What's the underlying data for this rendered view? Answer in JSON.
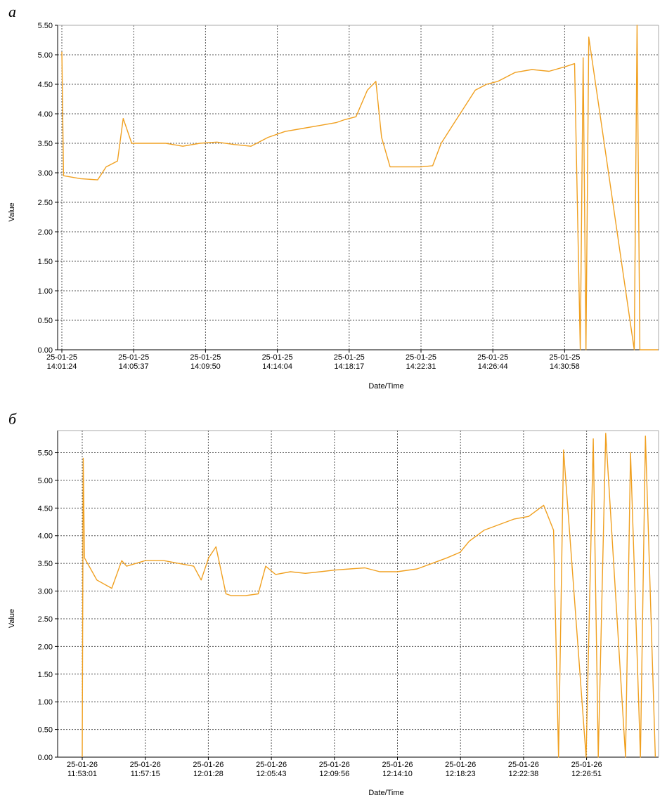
{
  "panels": [
    {
      "letter": "а",
      "chart_data": {
        "type": "line",
        "xlabel": "Date/Time",
        "ylabel": "Value",
        "ylim": [
          0,
          5.5
        ],
        "yticks": [
          "0.00",
          "0.50",
          "1.00",
          "1.50",
          "2.00",
          "2.50",
          "3.00",
          "3.50",
          "4.00",
          "4.50",
          "5.00",
          "5.50"
        ],
        "xticks": [
          {
            "date": "25-01-25",
            "time": "14:01:24"
          },
          {
            "date": "25-01-25",
            "time": "14:05:37"
          },
          {
            "date": "25-01-25",
            "time": "14:09:50"
          },
          {
            "date": "25-01-25",
            "time": "14:14:04"
          },
          {
            "date": "25-01-25",
            "time": "14:18:17"
          },
          {
            "date": "25-01-25",
            "time": "14:22:31"
          },
          {
            "date": "25-01-25",
            "time": "14:26:44"
          },
          {
            "date": "25-01-25",
            "time": "14:30:58"
          }
        ],
        "grid": true,
        "line_color": "#f0a020",
        "series": [
          {
            "x": [
              "14:01:24",
              "14:01:30",
              "14:02:30",
              "14:03:30",
              "14:04:00",
              "14:04:40",
              "14:05:00",
              "14:05:30",
              "14:06:30",
              "14:07:30",
              "14:08:30",
              "14:09:30",
              "14:10:30",
              "14:11:30",
              "14:12:30",
              "14:13:30",
              "14:14:30",
              "14:15:30",
              "14:16:30",
              "14:17:30",
              "14:18:00",
              "14:18:40",
              "14:19:20",
              "14:19:50",
              "14:20:10",
              "14:20:40",
              "14:21:30",
              "14:22:30",
              "14:23:10",
              "14:23:40",
              "14:24:20",
              "14:25:00",
              "14:25:40",
              "14:26:20",
              "14:27:00",
              "14:28:00",
              "14:29:00",
              "14:30:00",
              "14:30:58",
              "14:31:30",
              "14:31:50",
              "14:32:00",
              "14:32:10",
              "14:32:20",
              "14:35:00",
              "14:35:10",
              "14:35:20",
              "14:37:00"
            ],
            "y": [
              5.05,
              2.95,
              2.9,
              2.88,
              3.1,
              3.2,
              3.92,
              3.5,
              3.5,
              3.5,
              3.45,
              3.5,
              3.52,
              3.48,
              3.45,
              3.6,
              3.7,
              3.75,
              3.8,
              3.85,
              3.9,
              3.95,
              4.4,
              4.55,
              3.6,
              3.1,
              3.1,
              3.1,
              3.12,
              3.5,
              3.8,
              4.1,
              4.4,
              4.5,
              4.55,
              4.7,
              4.75,
              4.72,
              4.8,
              4.85,
              0.0,
              4.95,
              0.0,
              5.3,
              0.0,
              5.5,
              0.0,
              0.0
            ]
          }
        ]
      }
    },
    {
      "letter": "б",
      "chart_data": {
        "type": "line",
        "xlabel": "Date/Time",
        "ylabel": "Value",
        "ylim": [
          0,
          5.9
        ],
        "yticks": [
          "0.00",
          "0.50",
          "1.00",
          "1.50",
          "2.00",
          "2.50",
          "3.00",
          "3.50",
          "4.00",
          "4.50",
          "5.00",
          "5.50"
        ],
        "xticks": [
          {
            "date": "25-01-26",
            "time": "11:53:01"
          },
          {
            "date": "25-01-26",
            "time": "11:57:15"
          },
          {
            "date": "25-01-26",
            "time": "12:01:28"
          },
          {
            "date": "25-01-26",
            "time": "12:05:43"
          },
          {
            "date": "25-01-26",
            "time": "12:09:56"
          },
          {
            "date": "25-01-26",
            "time": "12:14:10"
          },
          {
            "date": "25-01-26",
            "time": "12:18:23"
          },
          {
            "date": "25-01-26",
            "time": "12:22:38"
          },
          {
            "date": "25-01-26",
            "time": "12:26:51"
          }
        ],
        "grid": true,
        "line_color": "#f0a020",
        "series": [
          {
            "x": [
              "11:53:01",
              "11:53:05",
              "11:53:10",
              "11:54:00",
              "11:55:00",
              "11:55:40",
              "11:56:00",
              "11:57:15",
              "11:58:30",
              "11:59:30",
              "12:00:30",
              "12:01:00",
              "12:01:30",
              "12:02:00",
              "12:02:40",
              "12:03:00",
              "12:04:00",
              "12:04:50",
              "12:05:20",
              "12:06:00",
              "12:07:00",
              "12:08:00",
              "12:09:00",
              "12:10:00",
              "12:11:00",
              "12:12:00",
              "12:13:00",
              "12:14:10",
              "12:15:30",
              "12:16:30",
              "12:17:30",
              "12:18:23",
              "12:19:00",
              "12:20:00",
              "12:21:00",
              "12:22:00",
              "12:23:00",
              "12:24:00",
              "12:24:40",
              "12:25:00",
              "12:25:20",
              "12:26:51",
              "12:27:20",
              "12:27:40",
              "12:28:10",
              "12:29:30",
              "12:29:50",
              "12:30:30",
              "12:30:50",
              "12:31:30"
            ],
            "y": [
              0.0,
              5.4,
              3.6,
              3.2,
              3.05,
              3.55,
              3.45,
              3.55,
              3.55,
              3.5,
              3.45,
              3.2,
              3.6,
              3.8,
              2.95,
              2.92,
              2.92,
              2.95,
              3.45,
              3.3,
              3.35,
              3.32,
              3.35,
              3.38,
              3.4,
              3.42,
              3.35,
              3.35,
              3.4,
              3.5,
              3.6,
              3.7,
              3.9,
              4.1,
              4.2,
              4.3,
              4.35,
              4.55,
              4.1,
              0.0,
              5.55,
              0.0,
              5.75,
              0.0,
              5.85,
              0.0,
              5.5,
              0.0,
              5.8,
              0.0
            ]
          }
        ]
      }
    }
  ]
}
